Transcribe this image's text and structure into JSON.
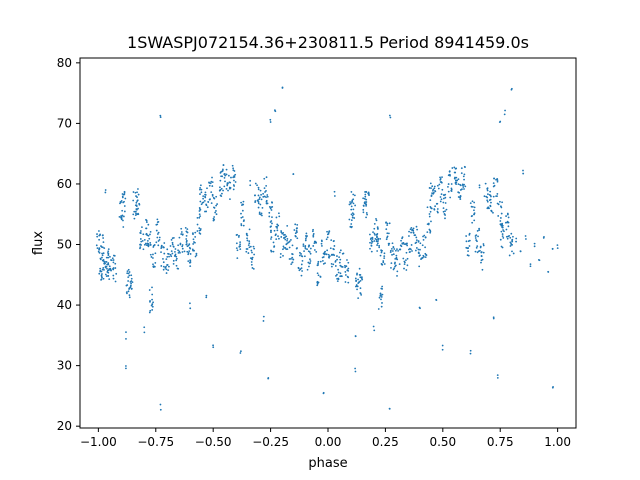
{
  "chart_data": {
    "type": "scatter",
    "title": "1SWASPJ072154.36+230811.5 Period 8941459.0s",
    "xlabel": "phase",
    "ylabel": "flux",
    "xlim": [
      -1.08,
      1.08
    ],
    "ylim": [
      19.7,
      80.8
    ],
    "x_ticks": [
      -1.0,
      -0.75,
      -0.5,
      -0.25,
      0.0,
      0.25,
      0.5,
      0.75,
      1.0
    ],
    "x_tick_labels": [
      "−1.00",
      "−0.75",
      "−0.50",
      "−0.25",
      "0.00",
      "0.25",
      "0.50",
      "0.75",
      "1.00"
    ],
    "y_ticks": [
      20,
      30,
      40,
      50,
      60,
      70,
      80
    ],
    "y_tick_labels": [
      "20",
      "30",
      "40",
      "50",
      "60",
      "70",
      "80"
    ],
    "grid": false,
    "marker_color": "#1f77b4",
    "series": [
      {
        "values_note": "",
        "points": [
          [
            -1.0,
            50.0
          ],
          [
            -0.99,
            46.0
          ],
          [
            -0.98,
            49.5
          ],
          [
            -0.97,
            45.5
          ],
          [
            -0.96,
            47.0
          ],
          [
            -0.95,
            46.5
          ],
          [
            -0.93,
            46.0
          ],
          [
            -0.9,
            55.0
          ],
          [
            -0.89,
            56.5
          ],
          [
            -0.87,
            44.0
          ],
          [
            -0.86,
            43.0
          ],
          [
            -0.84,
            56.5
          ],
          [
            -0.83,
            57.0
          ],
          [
            -0.81,
            51.0
          ],
          [
            -0.79,
            52.0
          ],
          [
            -0.78,
            50.0
          ],
          [
            -0.77,
            41.0
          ],
          [
            -0.76,
            48.5
          ],
          [
            -0.74,
            52.0
          ],
          [
            -0.72,
            48.0
          ],
          [
            -0.7,
            47.0
          ],
          [
            -0.68,
            49.0
          ],
          [
            -0.66,
            48.0
          ],
          [
            -0.64,
            50.5
          ],
          [
            -0.62,
            51.0
          ],
          [
            -0.6,
            48.5
          ],
          [
            -0.58,
            50.0
          ],
          [
            -0.56,
            54.0
          ],
          [
            -0.55,
            58.0
          ],
          [
            -0.53,
            57.5
          ],
          [
            -0.51,
            59.0
          ],
          [
            -0.49,
            56.0
          ],
          [
            -0.47,
            60.0
          ],
          [
            -0.45,
            61.0
          ],
          [
            -0.43,
            59.5
          ],
          [
            -0.41,
            61.0
          ],
          [
            -0.39,
            50.0
          ],
          [
            -0.37,
            55.0
          ],
          [
            -0.35,
            50.5
          ],
          [
            -0.33,
            48.0
          ],
          [
            -0.31,
            58.0
          ],
          [
            -0.29,
            57.0
          ],
          [
            -0.27,
            59.0
          ],
          [
            -0.25,
            55.0
          ],
          [
            -0.24,
            51.0
          ],
          [
            -0.22,
            53.0
          ],
          [
            -0.2,
            50.0
          ],
          [
            -0.18,
            51.0
          ],
          [
            -0.16,
            49.0
          ],
          [
            -0.14,
            51.5
          ],
          [
            -0.12,
            47.0
          ],
          [
            -0.1,
            50.0
          ],
          [
            -0.08,
            48.0
          ],
          [
            -0.06,
            51.0
          ],
          [
            -0.04,
            45.5
          ],
          [
            -0.02,
            49.0
          ],
          [
            0.0,
            50.0
          ],
          [
            0.02,
            48.5
          ],
          [
            0.04,
            46.0
          ],
          [
            0.06,
            47.0
          ],
          [
            0.08,
            45.5
          ],
          [
            0.1,
            55.0
          ],
          [
            0.11,
            56.5
          ],
          [
            0.13,
            44.0
          ],
          [
            0.14,
            43.0
          ],
          [
            0.16,
            56.5
          ],
          [
            0.17,
            57.0
          ],
          [
            0.19,
            51.0
          ],
          [
            0.21,
            52.0
          ],
          [
            0.22,
            50.0
          ],
          [
            0.23,
            41.0
          ],
          [
            0.24,
            48.5
          ],
          [
            0.26,
            52.0
          ],
          [
            0.28,
            48.0
          ],
          [
            0.3,
            47.0
          ],
          [
            0.32,
            49.0
          ],
          [
            0.34,
            48.0
          ],
          [
            0.36,
            50.5
          ],
          [
            0.38,
            51.0
          ],
          [
            0.4,
            48.5
          ],
          [
            0.42,
            50.0
          ],
          [
            0.44,
            54.0
          ],
          [
            0.45,
            58.0
          ],
          [
            0.47,
            57.5
          ],
          [
            0.49,
            59.0
          ],
          [
            0.51,
            56.0
          ],
          [
            0.53,
            60.0
          ],
          [
            0.55,
            61.0
          ],
          [
            0.57,
            59.5
          ],
          [
            0.59,
            61.0
          ],
          [
            0.61,
            50.0
          ],
          [
            0.63,
            55.0
          ],
          [
            0.65,
            50.5
          ],
          [
            0.67,
            48.0
          ],
          [
            0.69,
            58.0
          ],
          [
            0.71,
            57.0
          ],
          [
            0.73,
            59.0
          ],
          [
            0.75,
            55.0
          ],
          [
            0.76,
            51.0
          ],
          [
            0.78,
            53.0
          ],
          [
            0.8,
            50.0
          ],
          [
            0.82,
            51.0
          ],
          [
            0.84,
            49.0
          ],
          [
            0.86,
            51.5
          ],
          [
            0.88,
            47.0
          ],
          [
            0.9,
            50.0
          ],
          [
            0.92,
            48.0
          ],
          [
            0.94,
            51.0
          ],
          [
            0.96,
            45.5
          ],
          [
            0.98,
            49.0
          ],
          [
            1.0,
            50.0
          ],
          [
            -0.88,
            29.5
          ],
          [
            0.12,
            29.5
          ],
          [
            -0.73,
            23.0
          ],
          [
            0.27,
            23.0
          ],
          [
            -0.38,
            32.0
          ],
          [
            0.62,
            32.0
          ],
          [
            -0.28,
            37.5
          ],
          [
            0.72,
            37.5
          ],
          [
            -0.26,
            28.0
          ],
          [
            0.74,
            28.0
          ],
          [
            -0.25,
            70.0
          ],
          [
            0.75,
            70.0
          ],
          [
            -0.23,
            72.0
          ],
          [
            0.77,
            72.0
          ],
          [
            -0.8,
            36.0
          ],
          [
            0.2,
            36.0
          ],
          [
            -0.6,
            40.0
          ],
          [
            0.4,
            40.0
          ],
          [
            -0.2,
            76.0
          ],
          [
            0.8,
            76.0
          ],
          [
            -0.5,
            33.0
          ],
          [
            0.5,
            33.0
          ],
          [
            -0.02,
            26.0
          ],
          [
            0.98,
            26.0
          ],
          [
            -0.88,
            35.0
          ],
          [
            0.12,
            35.0
          ],
          [
            -0.53,
            41.0
          ],
          [
            0.47,
            41.0
          ],
          [
            -0.73,
            71.0
          ],
          [
            0.27,
            71.0
          ],
          [
            -0.34,
            60.0
          ],
          [
            0.66,
            60.0
          ],
          [
            -0.15,
            62.0
          ],
          [
            0.85,
            62.0
          ],
          [
            -0.97,
            58.5
          ],
          [
            0.03,
            58.5
          ]
        ]
      }
    ]
  }
}
